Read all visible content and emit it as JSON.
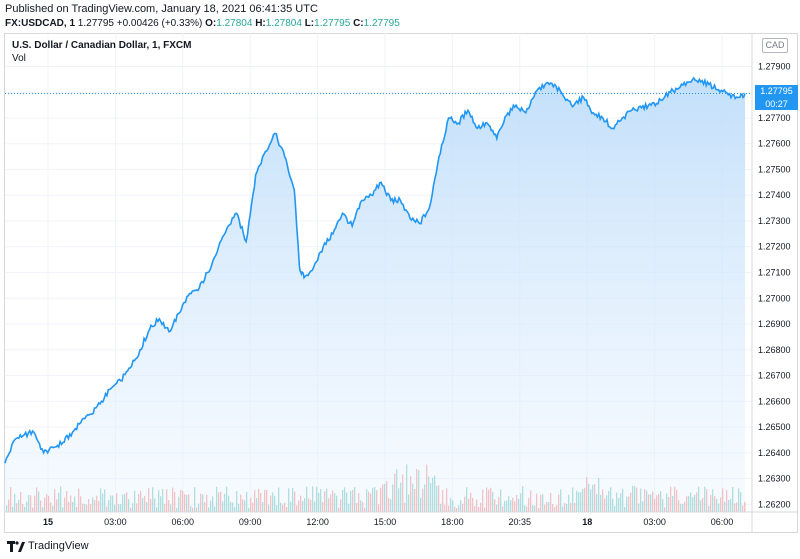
{
  "header": {
    "published": "Published on TradingView.com, January 18, 2021 06:41:35 UTC",
    "symbol": "FX:USDCAD, 1",
    "last": "1.27795",
    "change": "+0.00426 (+0.33%)",
    "o_label": "O:",
    "o_value": "1.27804",
    "h_label": "H:",
    "h_value": "1.27804",
    "l_label": "L:",
    "l_value": "1.27795",
    "c_label": "C:",
    "c_value": "1.27795"
  },
  "legend": {
    "title": "U.S. Dollar / Canadian Dollar, 1, FXCM",
    "volume_label": "Vol"
  },
  "currency": "CAD",
  "price_badge": "1.27795",
  "countdown": "00:27",
  "footer": {
    "brand": "TradingView"
  },
  "colors": {
    "line": "#2196f3",
    "fill": "#cfe4fb",
    "vol_up": "#26a69a",
    "vol_down": "#ef5350",
    "badge": "#2196f3"
  },
  "chart_data": {
    "type": "area",
    "symbol": "USDCAD",
    "y_ticks": [
      "1.27900",
      "1.27800",
      "1.27700",
      "1.27600",
      "1.27500",
      "1.27400",
      "1.27300",
      "1.27200",
      "1.27100",
      "1.27000",
      "1.26900",
      "1.26800",
      "1.26700",
      "1.26600",
      "1.26500",
      "1.26400",
      "1.26300",
      "1.26200"
    ],
    "ylim": [
      1.2617,
      1.2803
    ],
    "x_ticks": [
      "15",
      "03:00",
      "06:00",
      "09:00",
      "12:00",
      "15:00",
      "18:00",
      "20:35",
      "18",
      "03:00",
      "06:00"
    ],
    "last_price": 1.27795,
    "series": [
      {
        "x": [
          0,
          3,
          6,
          9,
          12,
          15,
          18,
          21,
          24,
          27,
          30,
          33,
          36,
          39,
          42,
          45,
          48,
          51,
          54,
          57,
          60,
          63,
          66,
          69,
          72,
          75,
          78,
          81,
          84,
          87,
          90,
          91.6,
          93,
          96,
          99,
          102,
          105,
          108,
          111,
          114,
          117,
          120,
          123,
          126,
          129,
          132,
          135,
          138,
          141,
          144,
          147,
          150,
          153,
          156,
          159,
          162,
          165,
          168,
          171,
          174,
          177,
          180,
          183,
          186,
          189,
          192,
          195,
          198,
          201,
          204,
          207,
          210,
          213,
          216,
          219,
          222,
          225,
          228,
          230.2
        ],
        "y": [
          1.2636,
          1.2645,
          1.2647,
          1.2648,
          1.264,
          1.2642,
          1.2644,
          1.2648,
          1.2653,
          1.2655,
          1.266,
          1.2665,
          1.2668,
          1.2673,
          1.268,
          1.2688,
          1.2692,
          1.2687,
          1.2694,
          1.2701,
          1.2703,
          1.271,
          1.2718,
          1.2727,
          1.2733,
          1.2722,
          1.2748,
          1.2757,
          1.2764,
          1.2755,
          1.2742,
          1.2712,
          1.2708,
          1.2712,
          1.272,
          1.2725,
          1.2733,
          1.2728,
          1.2738,
          1.274,
          1.2745,
          1.2738,
          1.2738,
          1.2731,
          1.2729,
          1.2735,
          1.2755,
          1.277,
          1.2768,
          1.2773,
          1.2766,
          1.2768,
          1.2762,
          1.2771,
          1.2775,
          1.2772,
          1.278,
          1.2783,
          1.2783,
          1.2778,
          1.2775,
          1.2778,
          1.2772,
          1.277,
          1.2766,
          1.277,
          1.2773,
          1.2774,
          1.2775,
          1.2777,
          1.278,
          1.2782,
          1.2784,
          1.2785,
          1.2783,
          1.2781,
          1.2779,
          1.2778,
          1.27795
        ]
      }
    ]
  }
}
